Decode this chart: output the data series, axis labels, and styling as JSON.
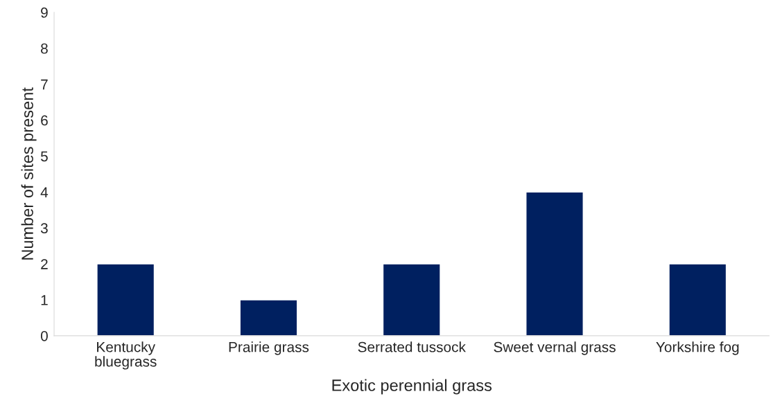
{
  "chart_data": {
    "type": "bar",
    "xlabel": "Exotic perennial grass",
    "ylabel": "Number of sites present",
    "categories": [
      "Kentucky\nbluegrass",
      "Prairie grass",
      "Serrated tussock",
      "Sweet vernal grass",
      "Yorkshire fog"
    ],
    "values": [
      2,
      1,
      2,
      4,
      2
    ],
    "color": "#002060",
    "ylim": [
      0,
      9
    ],
    "yticks": [
      0,
      1,
      2,
      3,
      4,
      5,
      6,
      7,
      8,
      9
    ],
    "grid": false,
    "legend": false
  }
}
